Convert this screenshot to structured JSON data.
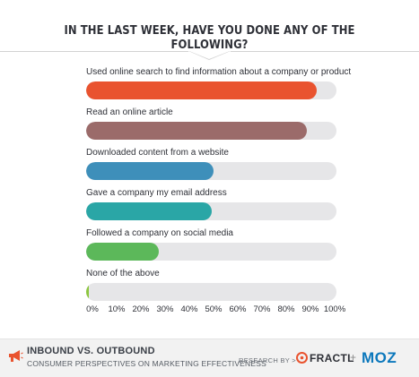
{
  "chart_data": {
    "type": "bar",
    "orientation": "horizontal",
    "title": "IN THE LAST WEEK, HAVE YOU DONE ANY OF THE FOLLOWING?",
    "categories": [
      "Used online search to find information about a company or product",
      "Read an online article",
      "Downloaded content from a website",
      "Gave a company my email address",
      "Followed a company on social media",
      "None of the above"
    ],
    "values": [
      92,
      88,
      51,
      50,
      29,
      1
    ],
    "unit": "%",
    "colors": [
      "#e9532f",
      "#9b6b6a",
      "#3e8fba",
      "#2aa6a6",
      "#5cb85a",
      "#8dc63f"
    ],
    "track_color": "#e6e6e8",
    "xlim": [
      0,
      100
    ],
    "ticks": [
      "0%",
      "10%",
      "20%",
      "30%",
      "40%",
      "50%",
      "60%",
      "70%",
      "80%",
      "90%",
      "100%"
    ],
    "grid": false,
    "legend": "none"
  },
  "footer": {
    "title": "INBOUND VS. OUTBOUND",
    "subtitle": "CONSUMER PERSPECTIVES ON MARKETING EFFECTIVENESS",
    "research_by": "RESEARCH BY >",
    "brand1": "FRACTL",
    "plus": "+",
    "brand2": "MOZ"
  },
  "icons": [
    "megaphone-icon",
    "fractl-logo-icon",
    "moz-logo-icon"
  ]
}
